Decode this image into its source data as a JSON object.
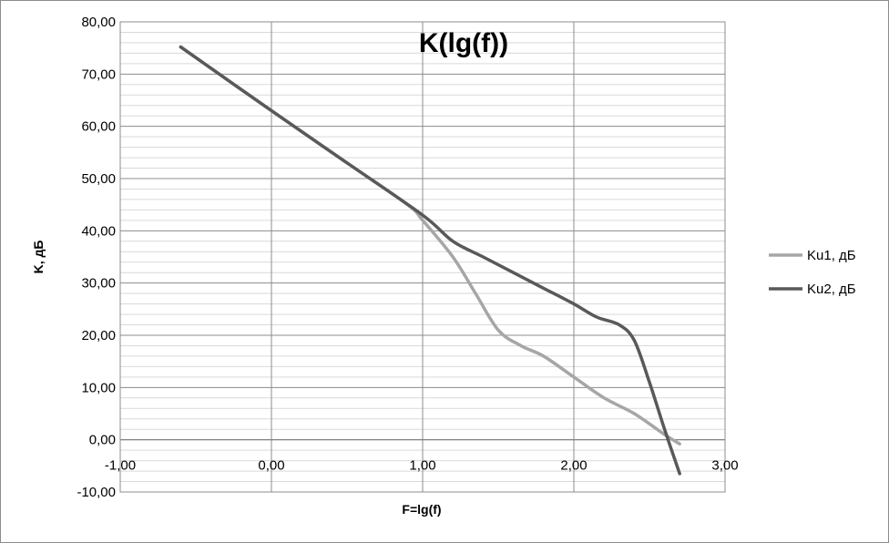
{
  "chart_data": {
    "type": "line",
    "title": "K(lg(f))",
    "xlabel": "F=lg(f)",
    "ylabel": "K, дБ",
    "xlim": [
      -1,
      3
    ],
    "ylim": [
      -10,
      80
    ],
    "x_ticks": [
      "-1,00",
      "0,00",
      "1,00",
      "2,00",
      "3,00"
    ],
    "y_ticks": [
      "80,00",
      "70,00",
      "60,00",
      "50,00",
      "40,00",
      "30,00",
      "20,00",
      "10,00",
      "0,00",
      "-10,00"
    ],
    "grid": true,
    "legend_position": "right",
    "series": [
      {
        "name": "Ku1, дБ",
        "color": "#a6a6a6",
        "x": [
          -0.6,
          0.0,
          0.5,
          0.9,
          1.0,
          1.2,
          1.35,
          1.5,
          1.65,
          1.8,
          2.0,
          2.2,
          2.4,
          2.6,
          2.7
        ],
        "y": [
          75.2,
          63.0,
          53.0,
          45.0,
          42.0,
          35.0,
          28.0,
          21.0,
          18.0,
          16.0,
          12.0,
          8.0,
          5.0,
          1.0,
          -0.8
        ]
      },
      {
        "name": "Ku2, дБ",
        "color": "#595959",
        "x": [
          -0.6,
          0.0,
          0.5,
          1.0,
          1.2,
          1.4,
          1.6,
          1.8,
          2.0,
          2.15,
          2.3,
          2.4,
          2.5,
          2.6,
          2.7
        ],
        "y": [
          75.2,
          63.0,
          53.0,
          43.0,
          38.0,
          35.0,
          32.0,
          29.0,
          26.0,
          23.5,
          22.0,
          19.0,
          11.0,
          2.0,
          -6.5
        ]
      }
    ]
  }
}
